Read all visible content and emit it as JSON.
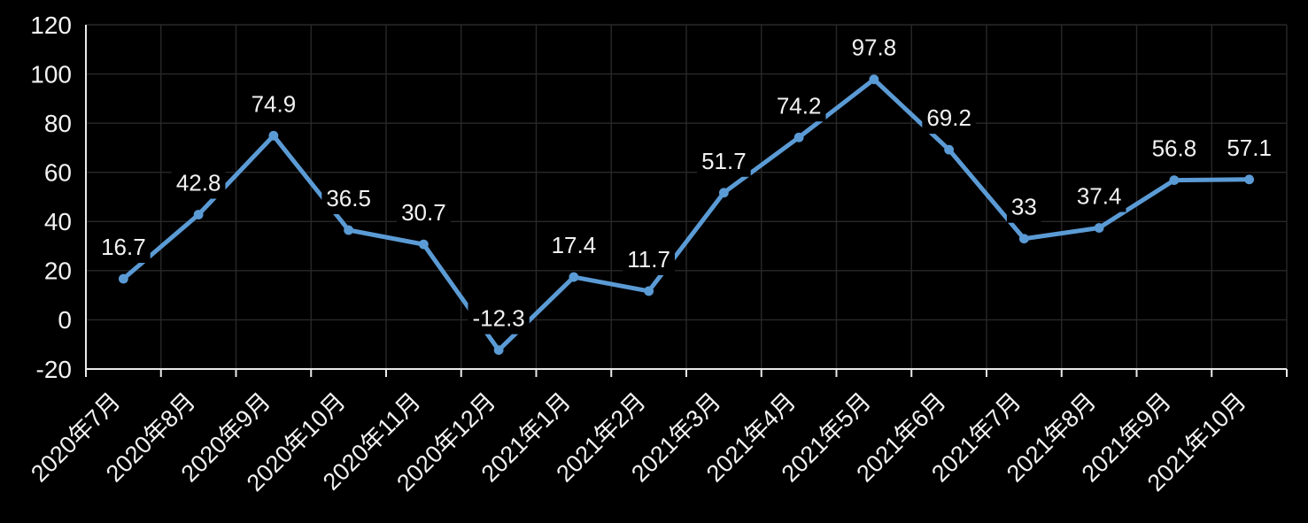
{
  "chart_data": {
    "type": "line",
    "title": "",
    "xlabel": "",
    "ylabel": "",
    "categories": [
      "2020年7月",
      "2020年8月",
      "2020年9月",
      "2020年10月",
      "2020年11月",
      "2020年12月",
      "2021年1月",
      "2021年2月",
      "2021年3月",
      "2021年4月",
      "2021年5月",
      "2021年6月",
      "2021年7月",
      "2021年8月",
      "2021年9月",
      "2021年10月"
    ],
    "series": [
      {
        "name": "",
        "values": [
          16.7,
          42.8,
          74.9,
          36.5,
          30.7,
          -12.3,
          17.4,
          11.7,
          51.7,
          74.2,
          97.8,
          69.2,
          33,
          37.4,
          56.8,
          57.1
        ],
        "point_labels": [
          "16.7",
          "42.8",
          "74.9",
          "36.5",
          "30.7",
          "-12.3",
          "17.4",
          "11.7",
          "51.7",
          "74.2",
          "97.8",
          "69.2",
          "33",
          "37.4",
          "56.8",
          "57.1"
        ]
      }
    ],
    "ylim": [
      -20,
      120
    ],
    "yticks": [
      -20,
      0,
      20,
      40,
      60,
      80,
      100,
      120
    ],
    "ytick_labels": [
      "-20",
      "0",
      "20",
      "40",
      "60",
      "80",
      "100",
      "120"
    ],
    "grid": true,
    "legend": false,
    "data_labels_visible": true,
    "x_labels_rotated_degrees": 45,
    "colors": {
      "background": "#000000",
      "line": "#5B9BD5",
      "marker": "#5B9BD5",
      "gridline": "#282828",
      "axis_line": "#EAEAEA",
      "tick_label_text": "#F2F2F2",
      "data_label_text": "#F2F2F2",
      "data_label_background": "#000000"
    }
  }
}
